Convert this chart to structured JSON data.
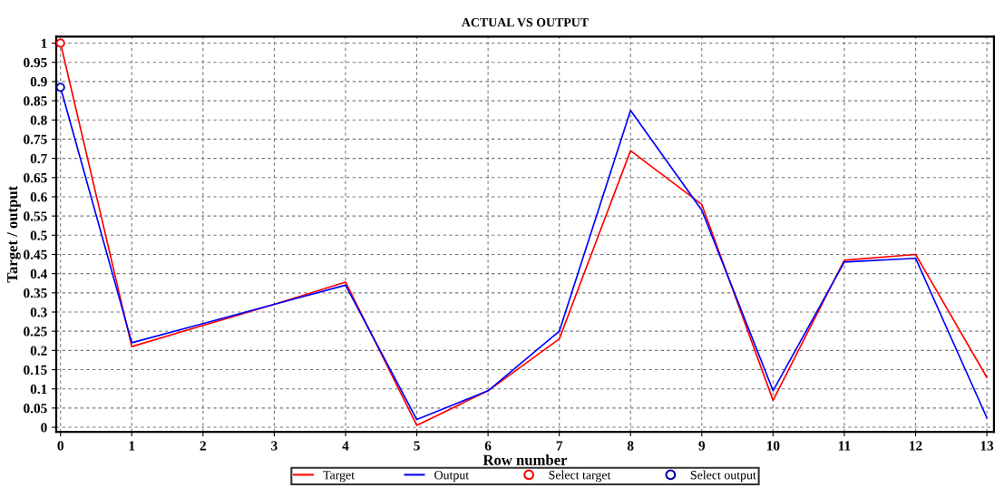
{
  "chart_data": {
    "type": "line",
    "title": "ACTUAL VS OUTPUT",
    "xlabel": "Row number",
    "ylabel": "Target / output",
    "x": [
      0,
      1,
      2,
      3,
      4,
      5,
      6,
      7,
      8,
      9,
      10,
      11,
      12,
      13
    ],
    "series": [
      {
        "name": "Target",
        "color": "#ff0000",
        "values": [
          1.0,
          0.21,
          0.265,
          0.32,
          0.378,
          0.005,
          0.095,
          0.23,
          0.72,
          0.58,
          0.07,
          0.435,
          0.45,
          0.13
        ]
      },
      {
        "name": "Output",
        "color": "#0000ff",
        "values": [
          0.885,
          0.22,
          0.27,
          0.32,
          0.37,
          0.02,
          0.095,
          0.25,
          0.825,
          0.565,
          0.095,
          0.43,
          0.44,
          0.025
        ]
      },
      {
        "name": "Select target",
        "type": "scatter",
        "marker": "circle",
        "color": "#ff0000",
        "x": [
          0
        ],
        "values": [
          1.0
        ]
      },
      {
        "name": "Select output",
        "type": "scatter",
        "marker": "circle",
        "color": "#0000aa",
        "x": [
          0
        ],
        "values": [
          0.885
        ]
      }
    ],
    "xlim": [
      -0.06,
      13.1
    ],
    "ylim": [
      -0.012,
      1.017
    ],
    "xticks": [
      0,
      1,
      2,
      3,
      4,
      5,
      6,
      7,
      8,
      9,
      10,
      11,
      12,
      13
    ],
    "yticks": [
      0,
      0.05,
      0.1,
      0.15,
      0.2,
      0.25,
      0.3,
      0.35,
      0.4,
      0.45,
      0.5,
      0.55,
      0.6,
      0.65,
      0.7,
      0.75,
      0.8,
      0.85,
      0.9,
      0.95,
      1
    ],
    "grid": true,
    "legend": "bottom",
    "line_style": "solid",
    "marker": "none"
  }
}
